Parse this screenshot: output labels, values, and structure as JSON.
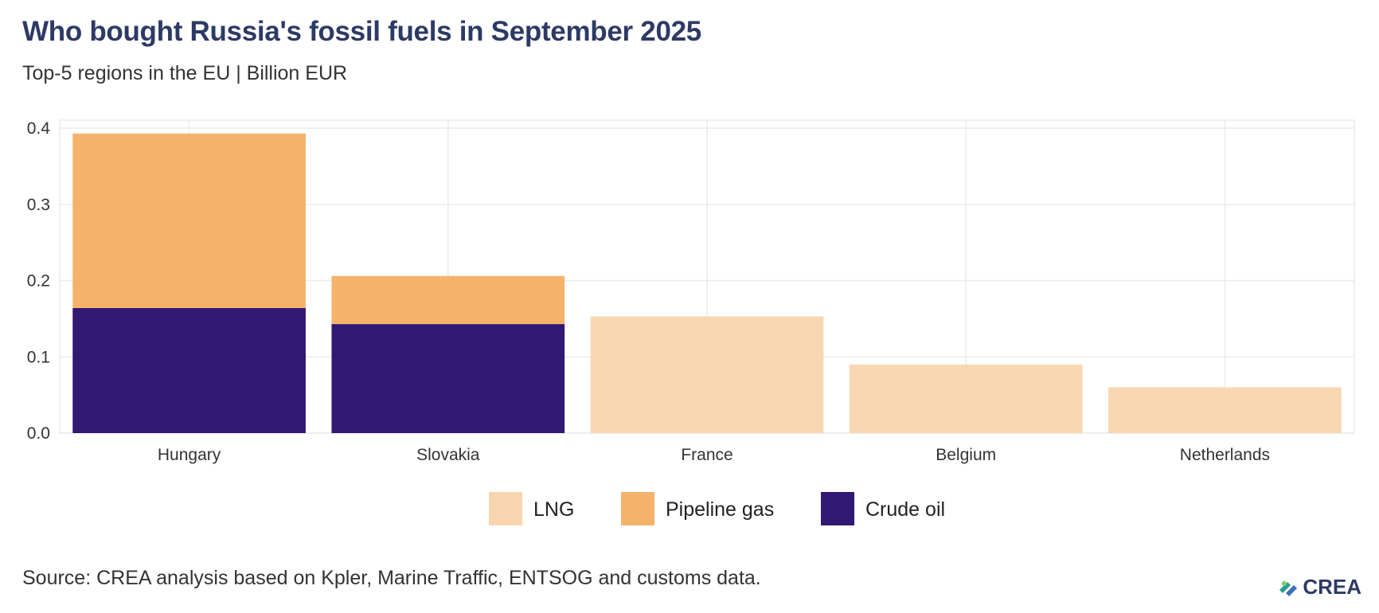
{
  "title": "Who bought Russia's fossil fuels in September 2025",
  "subtitle": "Top-5 regions in the EU | Billion EUR",
  "source": "Source: CREA analysis based on Kpler, Marine Traffic, ENTSOG and customs data.",
  "logo_text": "CREA",
  "chart_data": {
    "type": "bar",
    "stacked": true,
    "title": "Who bought Russia's fossil fuels in September 2025",
    "subtitle": "Top-5 regions in the EU | Billion EUR",
    "xlabel": "",
    "ylabel": "",
    "categories": [
      "Hungary",
      "Slovakia",
      "France",
      "Belgium",
      "Netherlands"
    ],
    "ylim": [
      0,
      0.4
    ],
    "yticks": [
      "0.0",
      "0.1",
      "0.2",
      "0.3",
      "0.4"
    ],
    "grid": true,
    "legend_position": "bottom",
    "series": [
      {
        "name": "Crude oil",
        "color": "#311873",
        "values": [
          0.164,
          0.143,
          0,
          0,
          0
        ]
      },
      {
        "name": "Pipeline gas",
        "color": "#f4b26b",
        "values": [
          0.229,
          0.063,
          0,
          0,
          0
        ]
      },
      {
        "name": "LNG",
        "color": "#f8d5ae",
        "values": [
          0,
          0,
          0.153,
          0.09,
          0.06
        ]
      }
    ],
    "legend_order": [
      "LNG",
      "Pipeline gas",
      "Crude oil"
    ]
  }
}
